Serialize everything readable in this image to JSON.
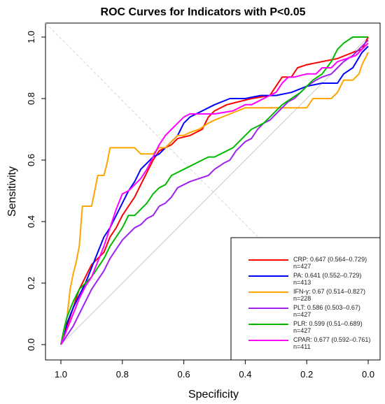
{
  "chart_data": {
    "type": "line",
    "title": "ROC Curves for Indicators with P<0.05",
    "xlabel": "Specificity",
    "ylabel": "Sensitivity",
    "xlim": [
      1.0,
      0.0
    ],
    "ylim": [
      0.0,
      1.0
    ],
    "x_ticks": [
      "1.0",
      "0.8",
      "0.6",
      "0.4",
      "0.2",
      "0.0"
    ],
    "y_ticks": [
      "0.0",
      "0.2",
      "0.4",
      "0.6",
      "0.8",
      "1.0"
    ],
    "grid": false,
    "legend_position": "bottom-right",
    "series": [
      {
        "name": "CRP",
        "legend_line1": "CRP: 0.647 (0.564–0.729)",
        "legend_line2": "n=427",
        "color": "#ff0000",
        "points": [
          [
            1.0,
            0.0
          ],
          [
            0.98,
            0.06
          ],
          [
            0.96,
            0.12
          ],
          [
            0.94,
            0.18
          ],
          [
            0.92,
            0.22
          ],
          [
            0.9,
            0.26
          ],
          [
            0.88,
            0.28
          ],
          [
            0.86,
            0.3
          ],
          [
            0.84,
            0.35
          ],
          [
            0.82,
            0.38
          ],
          [
            0.8,
            0.42
          ],
          [
            0.78,
            0.45
          ],
          [
            0.76,
            0.48
          ],
          [
            0.74,
            0.52
          ],
          [
            0.72,
            0.56
          ],
          [
            0.7,
            0.6
          ],
          [
            0.68,
            0.63
          ],
          [
            0.66,
            0.64
          ],
          [
            0.64,
            0.65
          ],
          [
            0.62,
            0.67
          ],
          [
            0.58,
            0.68
          ],
          [
            0.54,
            0.7
          ],
          [
            0.52,
            0.74
          ],
          [
            0.5,
            0.76
          ],
          [
            0.46,
            0.78
          ],
          [
            0.42,
            0.79
          ],
          [
            0.38,
            0.8
          ],
          [
            0.32,
            0.81
          ],
          [
            0.3,
            0.84
          ],
          [
            0.28,
            0.87
          ],
          [
            0.25,
            0.87
          ],
          [
            0.23,
            0.9
          ],
          [
            0.2,
            0.91
          ],
          [
            0.15,
            0.92
          ],
          [
            0.1,
            0.93
          ],
          [
            0.05,
            0.95
          ],
          [
            0.02,
            0.96
          ],
          [
            0.0,
            1.0
          ]
        ]
      },
      {
        "name": "PA",
        "legend_line1": "PA: 0.641 (0.552–0.729)",
        "legend_line2": "n=413",
        "color": "#0000ff",
        "points": [
          [
            1.0,
            0.0
          ],
          [
            0.98,
            0.07
          ],
          [
            0.96,
            0.12
          ],
          [
            0.94,
            0.16
          ],
          [
            0.92,
            0.2
          ],
          [
            0.9,
            0.25
          ],
          [
            0.88,
            0.3
          ],
          [
            0.86,
            0.35
          ],
          [
            0.84,
            0.38
          ],
          [
            0.82,
            0.42
          ],
          [
            0.8,
            0.46
          ],
          [
            0.78,
            0.5
          ],
          [
            0.76,
            0.53
          ],
          [
            0.74,
            0.57
          ],
          [
            0.72,
            0.59
          ],
          [
            0.7,
            0.61
          ],
          [
            0.68,
            0.62
          ],
          [
            0.66,
            0.64
          ],
          [
            0.64,
            0.66
          ],
          [
            0.62,
            0.68
          ],
          [
            0.6,
            0.72
          ],
          [
            0.58,
            0.74
          ],
          [
            0.56,
            0.75
          ],
          [
            0.54,
            0.76
          ],
          [
            0.52,
            0.77
          ],
          [
            0.5,
            0.78
          ],
          [
            0.45,
            0.8
          ],
          [
            0.4,
            0.8
          ],
          [
            0.35,
            0.81
          ],
          [
            0.3,
            0.81
          ],
          [
            0.25,
            0.82
          ],
          [
            0.2,
            0.84
          ],
          [
            0.15,
            0.85
          ],
          [
            0.1,
            0.85
          ],
          [
            0.08,
            0.88
          ],
          [
            0.05,
            0.9
          ],
          [
            0.02,
            0.95
          ],
          [
            0.0,
            0.97
          ]
        ]
      },
      {
        "name": "IFN-γ",
        "legend_line1": "IFN-γ: 0.67 (0.514–0.827)",
        "legend_line2": "n=228",
        "color": "#ffa500",
        "points": [
          [
            1.0,
            0.0
          ],
          [
            0.98,
            0.09
          ],
          [
            0.97,
            0.18
          ],
          [
            0.96,
            0.23
          ],
          [
            0.95,
            0.27
          ],
          [
            0.94,
            0.32
          ],
          [
            0.93,
            0.45
          ],
          [
            0.92,
            0.45
          ],
          [
            0.9,
            0.45
          ],
          [
            0.89,
            0.5
          ],
          [
            0.88,
            0.55
          ],
          [
            0.86,
            0.55
          ],
          [
            0.85,
            0.59
          ],
          [
            0.84,
            0.64
          ],
          [
            0.8,
            0.64
          ],
          [
            0.78,
            0.64
          ],
          [
            0.76,
            0.64
          ],
          [
            0.74,
            0.62
          ],
          [
            0.72,
            0.62
          ],
          [
            0.7,
            0.62
          ],
          [
            0.68,
            0.64
          ],
          [
            0.66,
            0.64
          ],
          [
            0.64,
            0.66
          ],
          [
            0.62,
            0.68
          ],
          [
            0.6,
            0.68
          ],
          [
            0.58,
            0.69
          ],
          [
            0.55,
            0.7
          ],
          [
            0.52,
            0.72
          ],
          [
            0.5,
            0.73
          ],
          [
            0.45,
            0.75
          ],
          [
            0.4,
            0.77
          ],
          [
            0.35,
            0.77
          ],
          [
            0.3,
            0.77
          ],
          [
            0.25,
            0.77
          ],
          [
            0.2,
            0.77
          ],
          [
            0.18,
            0.8
          ],
          [
            0.15,
            0.8
          ],
          [
            0.12,
            0.8
          ],
          [
            0.1,
            0.82
          ],
          [
            0.08,
            0.86
          ],
          [
            0.05,
            0.86
          ],
          [
            0.03,
            0.88
          ],
          [
            0.02,
            0.91
          ],
          [
            0.0,
            0.95
          ]
        ]
      },
      {
        "name": "PLT",
        "legend_line1": "PLT: 0.586 (0.503–0.67)",
        "legend_line2": "n=427",
        "color": "#a020f0",
        "points": [
          [
            1.0,
            0.0
          ],
          [
            0.98,
            0.03
          ],
          [
            0.96,
            0.06
          ],
          [
            0.94,
            0.1
          ],
          [
            0.92,
            0.14
          ],
          [
            0.9,
            0.18
          ],
          [
            0.88,
            0.21
          ],
          [
            0.86,
            0.24
          ],
          [
            0.84,
            0.28
          ],
          [
            0.82,
            0.31
          ],
          [
            0.8,
            0.34
          ],
          [
            0.78,
            0.36
          ],
          [
            0.76,
            0.38
          ],
          [
            0.74,
            0.39
          ],
          [
            0.72,
            0.41
          ],
          [
            0.7,
            0.42
          ],
          [
            0.68,
            0.45
          ],
          [
            0.66,
            0.46
          ],
          [
            0.64,
            0.48
          ],
          [
            0.62,
            0.51
          ],
          [
            0.6,
            0.52
          ],
          [
            0.58,
            0.53
          ],
          [
            0.55,
            0.54
          ],
          [
            0.52,
            0.55
          ],
          [
            0.5,
            0.57
          ],
          [
            0.47,
            0.59
          ],
          [
            0.45,
            0.6
          ],
          [
            0.43,
            0.63
          ],
          [
            0.4,
            0.66
          ],
          [
            0.38,
            0.67
          ],
          [
            0.36,
            0.7
          ],
          [
            0.34,
            0.72
          ],
          [
            0.32,
            0.73
          ],
          [
            0.3,
            0.75
          ],
          [
            0.28,
            0.77
          ],
          [
            0.26,
            0.79
          ],
          [
            0.24,
            0.8
          ],
          [
            0.22,
            0.82
          ],
          [
            0.2,
            0.84
          ],
          [
            0.17,
            0.86
          ],
          [
            0.15,
            0.87
          ],
          [
            0.12,
            0.88
          ],
          [
            0.1,
            0.9
          ],
          [
            0.08,
            0.92
          ],
          [
            0.05,
            0.94
          ],
          [
            0.02,
            0.97
          ],
          [
            0.0,
            0.99
          ]
        ]
      },
      {
        "name": "PLR",
        "legend_line1": "PLR: 0.599 (0.51–0.689)",
        "legend_line2": "n=427",
        "color": "#00bb00",
        "points": [
          [
            1.0,
            0.0
          ],
          [
            0.99,
            0.05
          ],
          [
            0.98,
            0.09
          ],
          [
            0.96,
            0.14
          ],
          [
            0.94,
            0.18
          ],
          [
            0.92,
            0.2
          ],
          [
            0.9,
            0.22
          ],
          [
            0.88,
            0.25
          ],
          [
            0.86,
            0.28
          ],
          [
            0.84,
            0.32
          ],
          [
            0.82,
            0.35
          ],
          [
            0.8,
            0.38
          ],
          [
            0.78,
            0.42
          ],
          [
            0.76,
            0.42
          ],
          [
            0.74,
            0.44
          ],
          [
            0.72,
            0.46
          ],
          [
            0.7,
            0.49
          ],
          [
            0.68,
            0.51
          ],
          [
            0.66,
            0.52
          ],
          [
            0.64,
            0.55
          ],
          [
            0.62,
            0.56
          ],
          [
            0.6,
            0.57
          ],
          [
            0.58,
            0.58
          ],
          [
            0.56,
            0.59
          ],
          [
            0.54,
            0.6
          ],
          [
            0.52,
            0.61
          ],
          [
            0.5,
            0.61
          ],
          [
            0.48,
            0.62
          ],
          [
            0.46,
            0.63
          ],
          [
            0.44,
            0.64
          ],
          [
            0.42,
            0.66
          ],
          [
            0.4,
            0.68
          ],
          [
            0.38,
            0.7
          ],
          [
            0.36,
            0.71
          ],
          [
            0.34,
            0.72
          ],
          [
            0.32,
            0.74
          ],
          [
            0.3,
            0.76
          ],
          [
            0.28,
            0.78
          ],
          [
            0.25,
            0.8
          ],
          [
            0.22,
            0.82
          ],
          [
            0.2,
            0.84
          ],
          [
            0.18,
            0.86
          ],
          [
            0.15,
            0.88
          ],
          [
            0.12,
            0.92
          ],
          [
            0.1,
            0.96
          ],
          [
            0.08,
            0.98
          ],
          [
            0.05,
            1.0
          ],
          [
            0.0,
            1.0
          ]
        ]
      },
      {
        "name": "CPAR",
        "legend_line1": "CPAR: 0.677 (0.592–0.761)",
        "legend_line2": "n=411",
        "color": "#ff00ff",
        "points": [
          [
            1.0,
            0.0
          ],
          [
            0.98,
            0.05
          ],
          [
            0.96,
            0.1
          ],
          [
            0.94,
            0.15
          ],
          [
            0.92,
            0.19
          ],
          [
            0.9,
            0.22
          ],
          [
            0.88,
            0.27
          ],
          [
            0.86,
            0.32
          ],
          [
            0.84,
            0.38
          ],
          [
            0.82,
            0.44
          ],
          [
            0.8,
            0.49
          ],
          [
            0.78,
            0.5
          ],
          [
            0.76,
            0.52
          ],
          [
            0.74,
            0.54
          ],
          [
            0.72,
            0.57
          ],
          [
            0.7,
            0.61
          ],
          [
            0.68,
            0.65
          ],
          [
            0.66,
            0.68
          ],
          [
            0.64,
            0.7
          ],
          [
            0.62,
            0.72
          ],
          [
            0.6,
            0.74
          ],
          [
            0.58,
            0.75
          ],
          [
            0.56,
            0.75
          ],
          [
            0.5,
            0.75
          ],
          [
            0.44,
            0.76
          ],
          [
            0.4,
            0.78
          ],
          [
            0.38,
            0.78
          ],
          [
            0.34,
            0.8
          ],
          [
            0.3,
            0.82
          ],
          [
            0.28,
            0.85
          ],
          [
            0.26,
            0.87
          ],
          [
            0.24,
            0.87
          ],
          [
            0.2,
            0.88
          ],
          [
            0.17,
            0.88
          ],
          [
            0.15,
            0.9
          ],
          [
            0.12,
            0.9
          ],
          [
            0.1,
            0.92
          ],
          [
            0.07,
            0.93
          ],
          [
            0.04,
            0.94
          ],
          [
            0.02,
            0.96
          ],
          [
            0.0,
            0.98
          ]
        ]
      }
    ]
  }
}
